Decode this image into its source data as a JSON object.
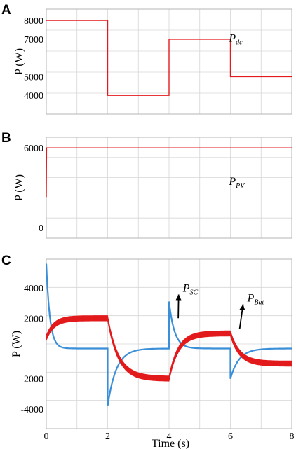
{
  "chart_data": [
    {
      "panel": "A",
      "type": "line",
      "ylabel": "P (W)",
      "xlim": [
        0,
        8
      ],
      "ylim": [
        3000,
        8600
      ],
      "yticks": [
        4000,
        5000,
        7000,
        8000
      ],
      "series": [
        {
          "name": "Pdc",
          "color": "#e31a1c",
          "points": [
            [
              0,
              8000
            ],
            [
              2,
              8000
            ],
            [
              2,
              4000
            ],
            [
              4,
              4000
            ],
            [
              4,
              7000
            ],
            [
              6,
              7000
            ],
            [
              6,
              5000
            ],
            [
              8,
              5000
            ]
          ]
        }
      ],
      "annotations": [
        {
          "text": "P",
          "sub": "dc",
          "x": 5.95,
          "y": 6860
        }
      ]
    },
    {
      "panel": "B",
      "type": "line",
      "ylabel": "P (W)",
      "xlim": [
        0,
        8
      ],
      "ylim": [
        -800,
        6800
      ],
      "yticks": [
        0,
        6000
      ],
      "series": [
        {
          "name": "PPV",
          "color": "#e31a1c",
          "points": [
            [
              0,
              2300
            ],
            [
              0.01,
              6000
            ],
            [
              8,
              6000
            ]
          ]
        }
      ],
      "annotations": [
        {
          "text": "P",
          "sub": "PV",
          "x": 5.95,
          "y": 3200
        }
      ]
    },
    {
      "panel": "C",
      "type": "line",
      "ylabel": "P (W)",
      "xlabel": "Time  (s)",
      "xlim": [
        0,
        8
      ],
      "ylim": [
        -5300,
        5900
      ],
      "xticks": [
        0,
        2,
        4,
        6,
        8
      ],
      "yticks": [
        -4000,
        -2000,
        2000,
        4000
      ],
      "series": [
        {
          "name": "PSC",
          "color": "#3a8fd8",
          "segments": [
            {
              "t0": 0,
              "t1": 2,
              "start": 5600,
              "end": 0,
              "tau": 0.12
            },
            {
              "t0": 2,
              "t1": 4,
              "start": -3800,
              "end": 0,
              "tau": 0.28
            },
            {
              "t0": 4,
              "t1": 6,
              "start": 3100,
              "end": 0,
              "tau": 0.18
            },
            {
              "t0": 6,
              "t1": 8,
              "start": -2000,
              "end": 0,
              "tau": 0.28
            }
          ]
        },
        {
          "name": "PBat",
          "color": "#e31a1c",
          "ripple": 350,
          "segments": [
            {
              "t0": 0,
              "t1": 2,
              "start": 700,
              "end": 2000,
              "tau": 0.25
            },
            {
              "t0": 2,
              "t1": 4,
              "start": 2000,
              "end": -2000,
              "tau": 0.35
            },
            {
              "t0": 4,
              "t1": 6,
              "start": -2000,
              "end": 1000,
              "tau": 0.3
            },
            {
              "t0": 6,
              "t1": 8,
              "start": 1000,
              "end": -1000,
              "tau": 0.3
            }
          ]
        }
      ],
      "annotations": [
        {
          "text": "P",
          "sub": "SC",
          "x": 4.45,
          "y": 3750,
          "arrow_to": [
            4.3,
            2000
          ]
        },
        {
          "text": "P",
          "sub": "Bat",
          "x": 6.55,
          "y": 3100,
          "arrow_to": [
            6.3,
            1300
          ]
        }
      ]
    }
  ]
}
